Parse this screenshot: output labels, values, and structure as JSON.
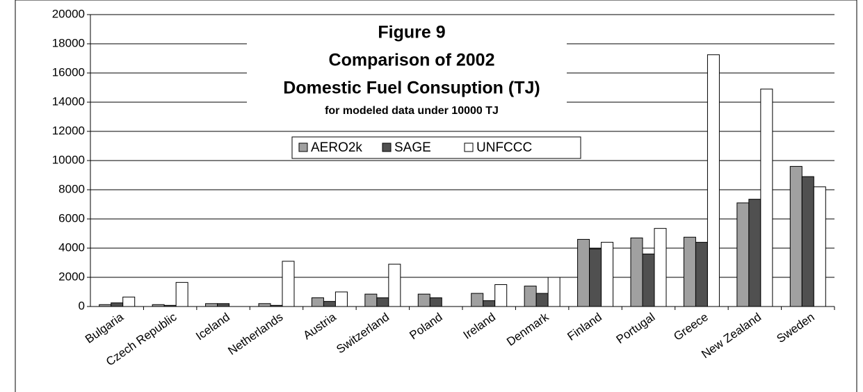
{
  "chart_data": {
    "type": "bar",
    "title": [
      "Figure 9",
      "Comparison of 2002",
      "Domestic Fuel Consuption (TJ)"
    ],
    "subtitle": "for modeled data under 10000 TJ",
    "categories": [
      "Bulgaria",
      "Czech Republic",
      "Iceland",
      "Netherlands",
      "Austria",
      "Switzerland",
      "Poland",
      "Ireland",
      "Denmark",
      "Finland",
      "Portugal",
      "Greece",
      "New Zealand",
      "Sweden"
    ],
    "series": [
      {
        "name": "AERO2k",
        "color": "#a0a0a0",
        "values": [
          130,
          130,
          200,
          200,
          600,
          850,
          850,
          900,
          1400,
          4600,
          4700,
          4750,
          7100,
          9600
        ]
      },
      {
        "name": "SAGE",
        "color": "#505050",
        "values": [
          250,
          80,
          200,
          80,
          350,
          600,
          600,
          400,
          900,
          3950,
          3600,
          4400,
          7350,
          8900
        ]
      },
      {
        "name": "UNFCCC",
        "color": "#ffffff",
        "values": [
          650,
          1650,
          null,
          3100,
          1000,
          2900,
          null,
          1500,
          2000,
          4400,
          5350,
          17250,
          14900,
          8200
        ]
      }
    ],
    "ylim": [
      0,
      20000
    ],
    "yticks": [
      0,
      2000,
      4000,
      6000,
      8000,
      10000,
      12000,
      14000,
      16000,
      18000,
      20000
    ],
    "grid": true
  }
}
